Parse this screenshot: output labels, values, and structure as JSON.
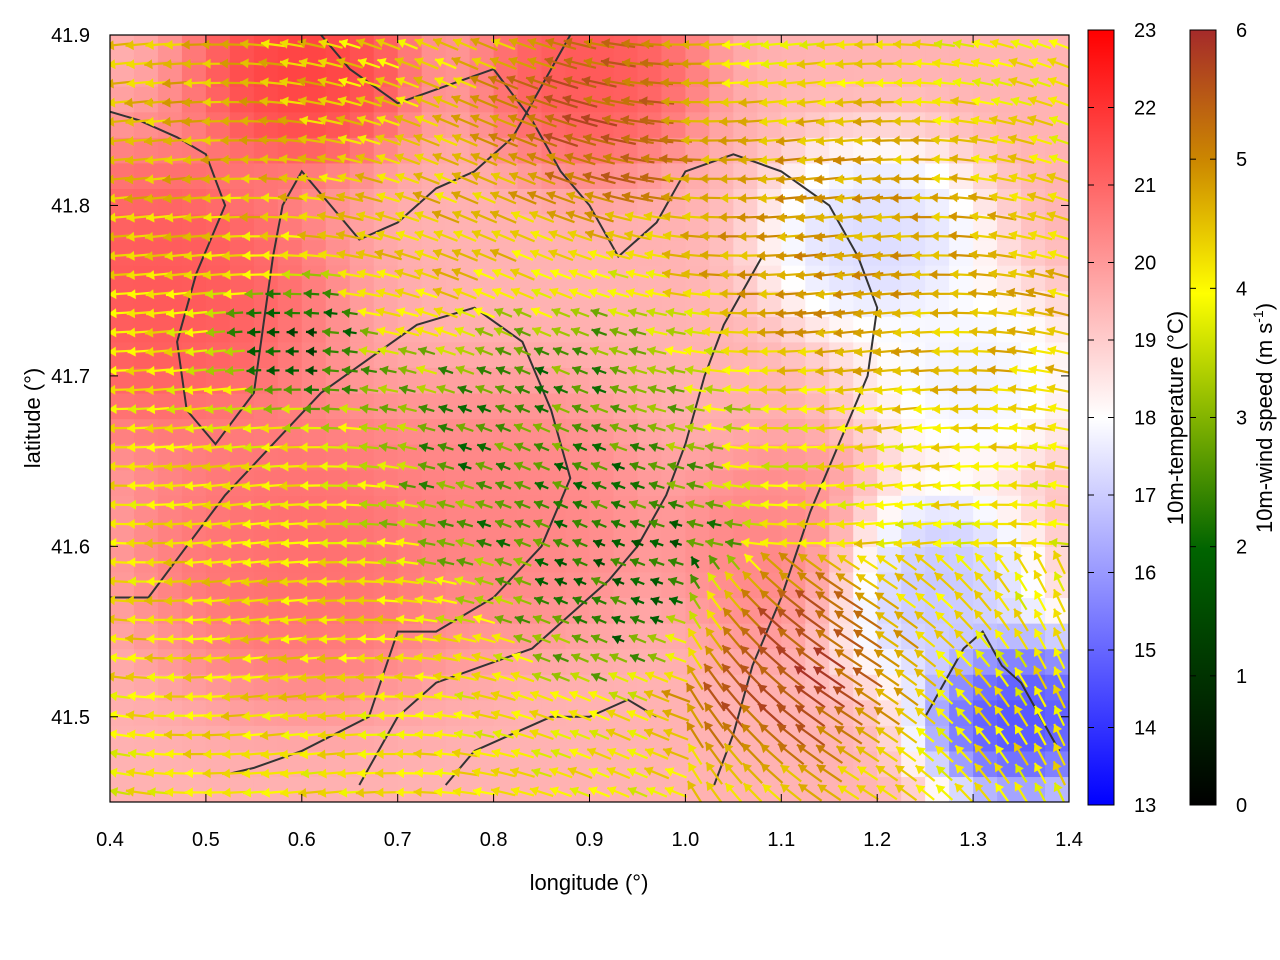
{
  "chart_data": {
    "type": "heatmap",
    "title": "",
    "xlabel": "longitude (°)",
    "ylabel": "latitude (°)",
    "xlim": [
      0.4,
      1.4
    ],
    "ylim": [
      41.45,
      41.9
    ],
    "x_ticks": [
      "0.4",
      "0.5",
      "0.6",
      "0.7",
      "0.8",
      "0.9",
      "1.0",
      "1.1",
      "1.2",
      "1.3",
      "1.4"
    ],
    "x_tick_values": [
      0.4,
      0.5,
      0.6,
      0.7,
      0.8,
      0.9,
      1.0,
      1.1,
      1.2,
      1.3,
      1.4
    ],
    "y_ticks": [
      "41.5",
      "41.6",
      "41.7",
      "41.8",
      "41.9"
    ],
    "y_tick_values": [
      41.5,
      41.6,
      41.7,
      41.8,
      41.9
    ],
    "temperature_colorbar": {
      "label": "10m-temperature (°C)",
      "range": [
        13,
        23
      ],
      "ticks": [
        "13",
        "14",
        "15",
        "16",
        "17",
        "18",
        "19",
        "20",
        "21",
        "22",
        "23"
      ],
      "colors": [
        "#0000ff",
        "#ffffff",
        "#ff0000"
      ]
    },
    "wind_colorbar": {
      "label_main": "10m-wind speed (m s",
      "label_sup": "-1",
      "label_end": ")",
      "range": [
        0,
        6
      ],
      "ticks": [
        "0",
        "1",
        "2",
        "3",
        "4",
        "5",
        "6"
      ],
      "colors": [
        "#000000",
        "#006400",
        "#ffff00",
        "#cc8800",
        "#a52a2a"
      ]
    },
    "temperature_centers": [
      {
        "lon": 0.45,
        "lat": 41.75,
        "t": 21.5,
        "s": 0.12
      },
      {
        "lon": 0.6,
        "lat": 41.6,
        "t": 21.0,
        "s": 0.12
      },
      {
        "lon": 0.6,
        "lat": 41.88,
        "t": 22.0,
        "s": 0.08
      },
      {
        "lon": 0.9,
        "lat": 41.88,
        "t": 21.5,
        "s": 0.08
      },
      {
        "lon": 0.82,
        "lat": 41.62,
        "t": 20.5,
        "s": 0.1
      },
      {
        "lon": 1.1,
        "lat": 41.6,
        "t": 20.5,
        "s": 0.08
      },
      {
        "lon": 1.35,
        "lat": 41.5,
        "t": 14.0,
        "s": 0.07
      },
      {
        "lon": 1.25,
        "lat": 41.58,
        "t": 16.5,
        "s": 0.08
      },
      {
        "lon": 1.2,
        "lat": 41.78,
        "t": 17.0,
        "s": 0.08
      },
      {
        "lon": 1.3,
        "lat": 41.7,
        "t": 17.5,
        "s": 0.08
      }
    ],
    "wind_regions": [
      {
        "lon": 0.85,
        "lat": 41.66,
        "speed": 1.6,
        "s": 0.12
      },
      {
        "lon": 0.95,
        "lat": 41.58,
        "speed": 1.2,
        "s": 0.08
      },
      {
        "lon": 0.6,
        "lat": 41.72,
        "speed": 1.0,
        "s": 0.05
      },
      {
        "lon": 0.5,
        "lat": 41.85,
        "speed": 4.0,
        "s": 0.1
      },
      {
        "lon": 1.1,
        "lat": 41.53,
        "speed": 5.8,
        "s": 0.08
      },
      {
        "lon": 0.9,
        "lat": 41.85,
        "speed": 5.5,
        "s": 0.08
      },
      {
        "lon": 1.15,
        "lat": 41.78,
        "speed": 4.5,
        "s": 0.1
      },
      {
        "lon": 1.3,
        "lat": 41.75,
        "speed": 4.0,
        "s": 0.1
      },
      {
        "lon": 0.55,
        "lat": 41.55,
        "speed": 3.5,
        "s": 0.1
      },
      {
        "lon": 0.75,
        "lat": 41.8,
        "speed": 3.8,
        "s": 0.1
      }
    ],
    "contours": [
      [
        [
          0.4,
          41.855
        ],
        [
          0.43,
          41.85
        ],
        [
          0.47,
          41.84
        ],
        [
          0.5,
          41.83
        ],
        [
          0.52,
          41.8
        ],
        [
          0.49,
          41.76
        ],
        [
          0.47,
          41.72
        ],
        [
          0.48,
          41.68
        ],
        [
          0.51,
          41.66
        ],
        [
          0.55,
          41.69
        ],
        [
          0.56,
          41.73
        ],
        [
          0.57,
          41.77
        ],
        [
          0.58,
          41.8
        ],
        [
          0.6,
          41.82
        ],
        [
          0.63,
          41.8
        ],
        [
          0.66,
          41.78
        ],
        [
          0.7,
          41.79
        ],
        [
          0.74,
          41.81
        ],
        [
          0.78,
          41.82
        ],
        [
          0.82,
          41.84
        ],
        [
          0.85,
          41.87
        ],
        [
          0.88,
          41.9
        ]
      ],
      [
        [
          0.4,
          41.57
        ],
        [
          0.44,
          41.57
        ],
        [
          0.48,
          41.6
        ],
        [
          0.52,
          41.63
        ],
        [
          0.57,
          41.66
        ],
        [
          0.62,
          41.69
        ],
        [
          0.67,
          41.71
        ],
        [
          0.72,
          41.73
        ],
        [
          0.78,
          41.74
        ],
        [
          0.83,
          41.72
        ],
        [
          0.86,
          41.68
        ],
        [
          0.88,
          41.64
        ],
        [
          0.85,
          41.6
        ],
        [
          0.8,
          41.57
        ],
        [
          0.74,
          41.55
        ],
        [
          0.7,
          41.55
        ],
        [
          0.67,
          41.5
        ],
        [
          0.6,
          41.48
        ],
        [
          0.55,
          41.47
        ],
        [
          0.52,
          41.466
        ]
      ],
      [
        [
          0.62,
          41.9
        ],
        [
          0.65,
          41.88
        ],
        [
          0.7,
          41.86
        ],
        [
          0.75,
          41.87
        ],
        [
          0.8,
          41.88
        ],
        [
          0.84,
          41.85
        ],
        [
          0.87,
          41.82
        ],
        [
          0.9,
          41.8
        ],
        [
          0.93,
          41.77
        ],
        [
          0.97,
          41.79
        ],
        [
          1.0,
          41.82
        ],
        [
          1.05,
          41.83
        ],
        [
          1.1,
          41.82
        ],
        [
          1.15,
          41.8
        ],
        [
          1.18,
          41.77
        ],
        [
          1.2,
          41.74
        ],
        [
          1.19,
          41.7
        ],
        [
          1.16,
          41.66
        ],
        [
          1.13,
          41.62
        ],
        [
          1.1,
          41.57
        ],
        [
          1.07,
          41.53
        ],
        [
          1.05,
          41.49
        ],
        [
          1.03,
          41.46
        ]
      ],
      [
        [
          0.66,
          41.46
        ],
        [
          0.7,
          41.5
        ],
        [
          0.74,
          41.52
        ],
        [
          0.79,
          41.53
        ],
        [
          0.84,
          41.54
        ],
        [
          0.88,
          41.56
        ],
        [
          0.92,
          41.58
        ],
        [
          0.95,
          41.6
        ],
        [
          0.98,
          41.63
        ],
        [
          1.0,
          41.66
        ],
        [
          1.02,
          41.7
        ],
        [
          1.04,
          41.73
        ],
        [
          1.06,
          41.75
        ],
        [
          1.08,
          41.77
        ]
      ],
      [
        [
          1.25,
          41.5
        ],
        [
          1.27,
          41.52
        ],
        [
          1.29,
          41.54
        ],
        [
          1.31,
          41.55
        ],
        [
          1.33,
          41.53
        ],
        [
          1.35,
          41.52
        ],
        [
          1.37,
          41.5
        ],
        [
          1.39,
          41.48
        ]
      ],
      [
        [
          0.75,
          41.46
        ],
        [
          0.78,
          41.48
        ],
        [
          0.82,
          41.49
        ],
        [
          0.86,
          41.5
        ],
        [
          0.9,
          41.5
        ],
        [
          0.94,
          41.51
        ],
        [
          0.97,
          41.5
        ]
      ]
    ]
  }
}
